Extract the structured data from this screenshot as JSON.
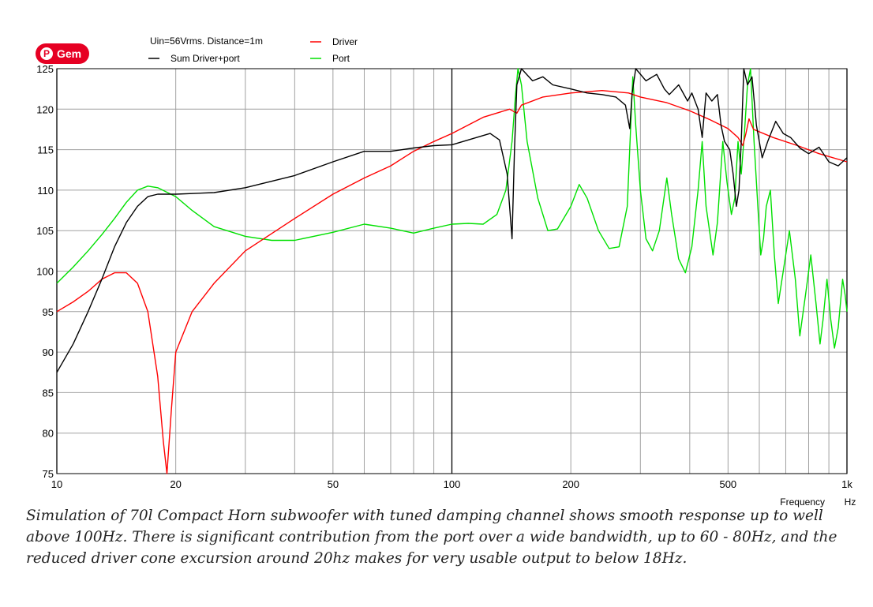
{
  "pin_button": {
    "label": "Gem",
    "icon": "pinterest-icon"
  },
  "caption": "Simulation of 70l Compact Horn subwoofer with tuned damping channel shows smooth response up to well above 100Hz. There is significant contribution from the port over a wide bandwidth, up to 60 - 80Hz, and the reduced driver cone excursion around 20hz makes for very usable output to below 18Hz.",
  "chart_data": {
    "type": "line",
    "title": "Uin=56Vrms. Distance=1m",
    "xlabel": "Frequency",
    "xunit": "Hz",
    "xscale": "log",
    "xlim": [
      10,
      1000
    ],
    "ylim": [
      75,
      125
    ],
    "grid": true,
    "legend_position": "top",
    "x_tick_labels": [
      {
        "value": 10,
        "label": "10"
      },
      {
        "value": 20,
        "label": "20"
      },
      {
        "value": 50,
        "label": "50"
      },
      {
        "value": 100,
        "label": "100"
      },
      {
        "value": 200,
        "label": "200"
      },
      {
        "value": 500,
        "label": "500"
      },
      {
        "value": 1000,
        "label": "1k"
      }
    ],
    "y_tick_labels": [
      {
        "value": 125,
        "label": "125"
      },
      {
        "value": 120,
        "label": "120"
      },
      {
        "value": 115,
        "label": "115"
      },
      {
        "value": 110,
        "label": "110"
      },
      {
        "value": 105,
        "label": "105"
      },
      {
        "value": 100,
        "label": "100"
      },
      {
        "value": 95,
        "label": "95"
      },
      {
        "value": 90,
        "label": "90"
      },
      {
        "value": 85,
        "label": "85"
      },
      {
        "value": 80,
        "label": "80"
      },
      {
        "value": 75,
        "label": "75"
      }
    ],
    "series": [
      {
        "name": "Sum Driver+port",
        "color": "#000000",
        "points": [
          [
            10,
            87.5
          ],
          [
            11,
            91
          ],
          [
            12,
            95
          ],
          [
            13,
            99
          ],
          [
            14,
            103
          ],
          [
            15,
            106
          ],
          [
            16,
            108
          ],
          [
            17,
            109.2
          ],
          [
            18,
            109.5
          ],
          [
            20,
            109.5
          ],
          [
            25,
            109.7
          ],
          [
            30,
            110.3
          ],
          [
            40,
            111.8
          ],
          [
            50,
            113.5
          ],
          [
            60,
            114.8
          ],
          [
            70,
            114.8
          ],
          [
            80,
            115.2
          ],
          [
            90,
            115.5
          ],
          [
            100,
            115.6
          ],
          [
            110,
            116.2
          ],
          [
            125,
            117
          ],
          [
            132,
            116.2
          ],
          [
            138,
            112
          ],
          [
            142,
            104
          ],
          [
            144,
            115
          ],
          [
            146,
            123
          ],
          [
            150,
            125
          ],
          [
            160,
            123.5
          ],
          [
            170,
            124
          ],
          [
            180,
            123
          ],
          [
            200,
            122.5
          ],
          [
            220,
            122
          ],
          [
            240,
            121.8
          ],
          [
            260,
            121.5
          ],
          [
            275,
            120.5
          ],
          [
            282,
            117.6
          ],
          [
            286,
            122
          ],
          [
            292,
            125
          ],
          [
            310,
            123.5
          ],
          [
            330,
            124.3
          ],
          [
            345,
            122.5
          ],
          [
            355,
            121.8
          ],
          [
            375,
            123
          ],
          [
            395,
            121
          ],
          [
            405,
            122
          ],
          [
            420,
            120
          ],
          [
            430,
            116.5
          ],
          [
            440,
            122
          ],
          [
            455,
            121
          ],
          [
            470,
            121.8
          ],
          [
            480,
            118
          ],
          [
            490,
            116
          ],
          [
            505,
            115
          ],
          [
            515,
            112
          ],
          [
            525,
            108
          ],
          [
            533,
            110
          ],
          [
            540,
            116
          ],
          [
            548,
            125
          ],
          [
            560,
            123
          ],
          [
            575,
            124
          ],
          [
            590,
            118
          ],
          [
            610,
            114
          ],
          [
            630,
            116
          ],
          [
            660,
            118.5
          ],
          [
            690,
            117
          ],
          [
            720,
            116.5
          ],
          [
            760,
            115.2
          ],
          [
            800,
            114.5
          ],
          [
            850,
            115.3
          ],
          [
            900,
            113.5
          ],
          [
            950,
            113
          ],
          [
            1000,
            114
          ]
        ]
      },
      {
        "name": "Driver",
        "color": "#ff0000",
        "points": [
          [
            10,
            95
          ],
          [
            11,
            96.2
          ],
          [
            12,
            97.5
          ],
          [
            13,
            99
          ],
          [
            14,
            99.8
          ],
          [
            15,
            99.8
          ],
          [
            16,
            98.5
          ],
          [
            17,
            95
          ],
          [
            18,
            87
          ],
          [
            18.6,
            79
          ],
          [
            19,
            75
          ],
          [
            19.5,
            83
          ],
          [
            20,
            90
          ],
          [
            22,
            95
          ],
          [
            25,
            98.5
          ],
          [
            30,
            102.5
          ],
          [
            40,
            106.5
          ],
          [
            50,
            109.5
          ],
          [
            60,
            111.5
          ],
          [
            70,
            113
          ],
          [
            80,
            114.8
          ],
          [
            90,
            116
          ],
          [
            100,
            117
          ],
          [
            120,
            119
          ],
          [
            140,
            120
          ],
          [
            146,
            119.5
          ],
          [
            150,
            120.5
          ],
          [
            170,
            121.5
          ],
          [
            200,
            122
          ],
          [
            240,
            122.3
          ],
          [
            280,
            122
          ],
          [
            300,
            121.5
          ],
          [
            350,
            120.8
          ],
          [
            400,
            119.8
          ],
          [
            450,
            118.7
          ],
          [
            500,
            117.6
          ],
          [
            530,
            116.5
          ],
          [
            545,
            115.5
          ],
          [
            555,
            117
          ],
          [
            565,
            118.8
          ],
          [
            580,
            117.5
          ],
          [
            650,
            116.5
          ],
          [
            750,
            115.5
          ],
          [
            850,
            114.5
          ],
          [
            1000,
            113.5
          ]
        ]
      },
      {
        "name": "Port",
        "color": "#00e000",
        "points": [
          [
            10,
            98.5
          ],
          [
            11,
            100.5
          ],
          [
            12,
            102.5
          ],
          [
            13,
            104.5
          ],
          [
            14,
            106.5
          ],
          [
            15,
            108.5
          ],
          [
            16,
            110
          ],
          [
            17,
            110.5
          ],
          [
            18,
            110.3
          ],
          [
            20,
            109.2
          ],
          [
            22,
            107.5
          ],
          [
            25,
            105.5
          ],
          [
            30,
            104.3
          ],
          [
            35,
            103.8
          ],
          [
            40,
            103.8
          ],
          [
            50,
            104.8
          ],
          [
            60,
            105.8
          ],
          [
            70,
            105.3
          ],
          [
            80,
            104.7
          ],
          [
            90,
            105.3
          ],
          [
            100,
            105.8
          ],
          [
            110,
            105.9
          ],
          [
            120,
            105.8
          ],
          [
            130,
            107
          ],
          [
            137,
            110
          ],
          [
            142,
            116
          ],
          [
            145,
            122
          ],
          [
            147,
            125
          ],
          [
            150,
            123
          ],
          [
            155,
            116
          ],
          [
            165,
            109
          ],
          [
            175,
            105
          ],
          [
            185,
            105.2
          ],
          [
            200,
            108
          ],
          [
            210,
            110.7
          ],
          [
            220,
            109
          ],
          [
            235,
            105
          ],
          [
            250,
            102.8
          ],
          [
            265,
            103
          ],
          [
            278,
            108
          ],
          [
            287,
            124
          ],
          [
            292,
            118
          ],
          [
            300,
            110
          ],
          [
            310,
            104
          ],
          [
            322,
            102.5
          ],
          [
            335,
            105
          ],
          [
            350,
            111.5
          ],
          [
            360,
            107
          ],
          [
            375,
            101.5
          ],
          [
            390,
            99.8
          ],
          [
            405,
            103
          ],
          [
            420,
            110
          ],
          [
            430,
            116
          ],
          [
            440,
            108
          ],
          [
            458,
            102
          ],
          [
            470,
            106
          ],
          [
            485,
            116
          ],
          [
            497,
            111
          ],
          [
            510,
            107
          ],
          [
            520,
            109
          ],
          [
            530,
            116
          ],
          [
            540,
            112
          ],
          [
            550,
            117
          ],
          [
            560,
            123
          ],
          [
            570,
            125
          ],
          [
            582,
            116
          ],
          [
            595,
            108
          ],
          [
            605,
            102
          ],
          [
            615,
            104
          ],
          [
            625,
            108
          ],
          [
            640,
            110
          ],
          [
            655,
            102
          ],
          [
            670,
            96
          ],
          [
            690,
            100
          ],
          [
            715,
            105
          ],
          [
            740,
            99
          ],
          [
            760,
            92
          ],
          [
            785,
            97
          ],
          [
            810,
            102
          ],
          [
            835,
            96
          ],
          [
            855,
            91
          ],
          [
            870,
            94
          ],
          [
            890,
            99
          ],
          [
            910,
            94
          ],
          [
            930,
            90.5
          ],
          [
            950,
            93
          ],
          [
            975,
            99
          ],
          [
            990,
            97
          ],
          [
            1000,
            95
          ]
        ]
      }
    ]
  }
}
